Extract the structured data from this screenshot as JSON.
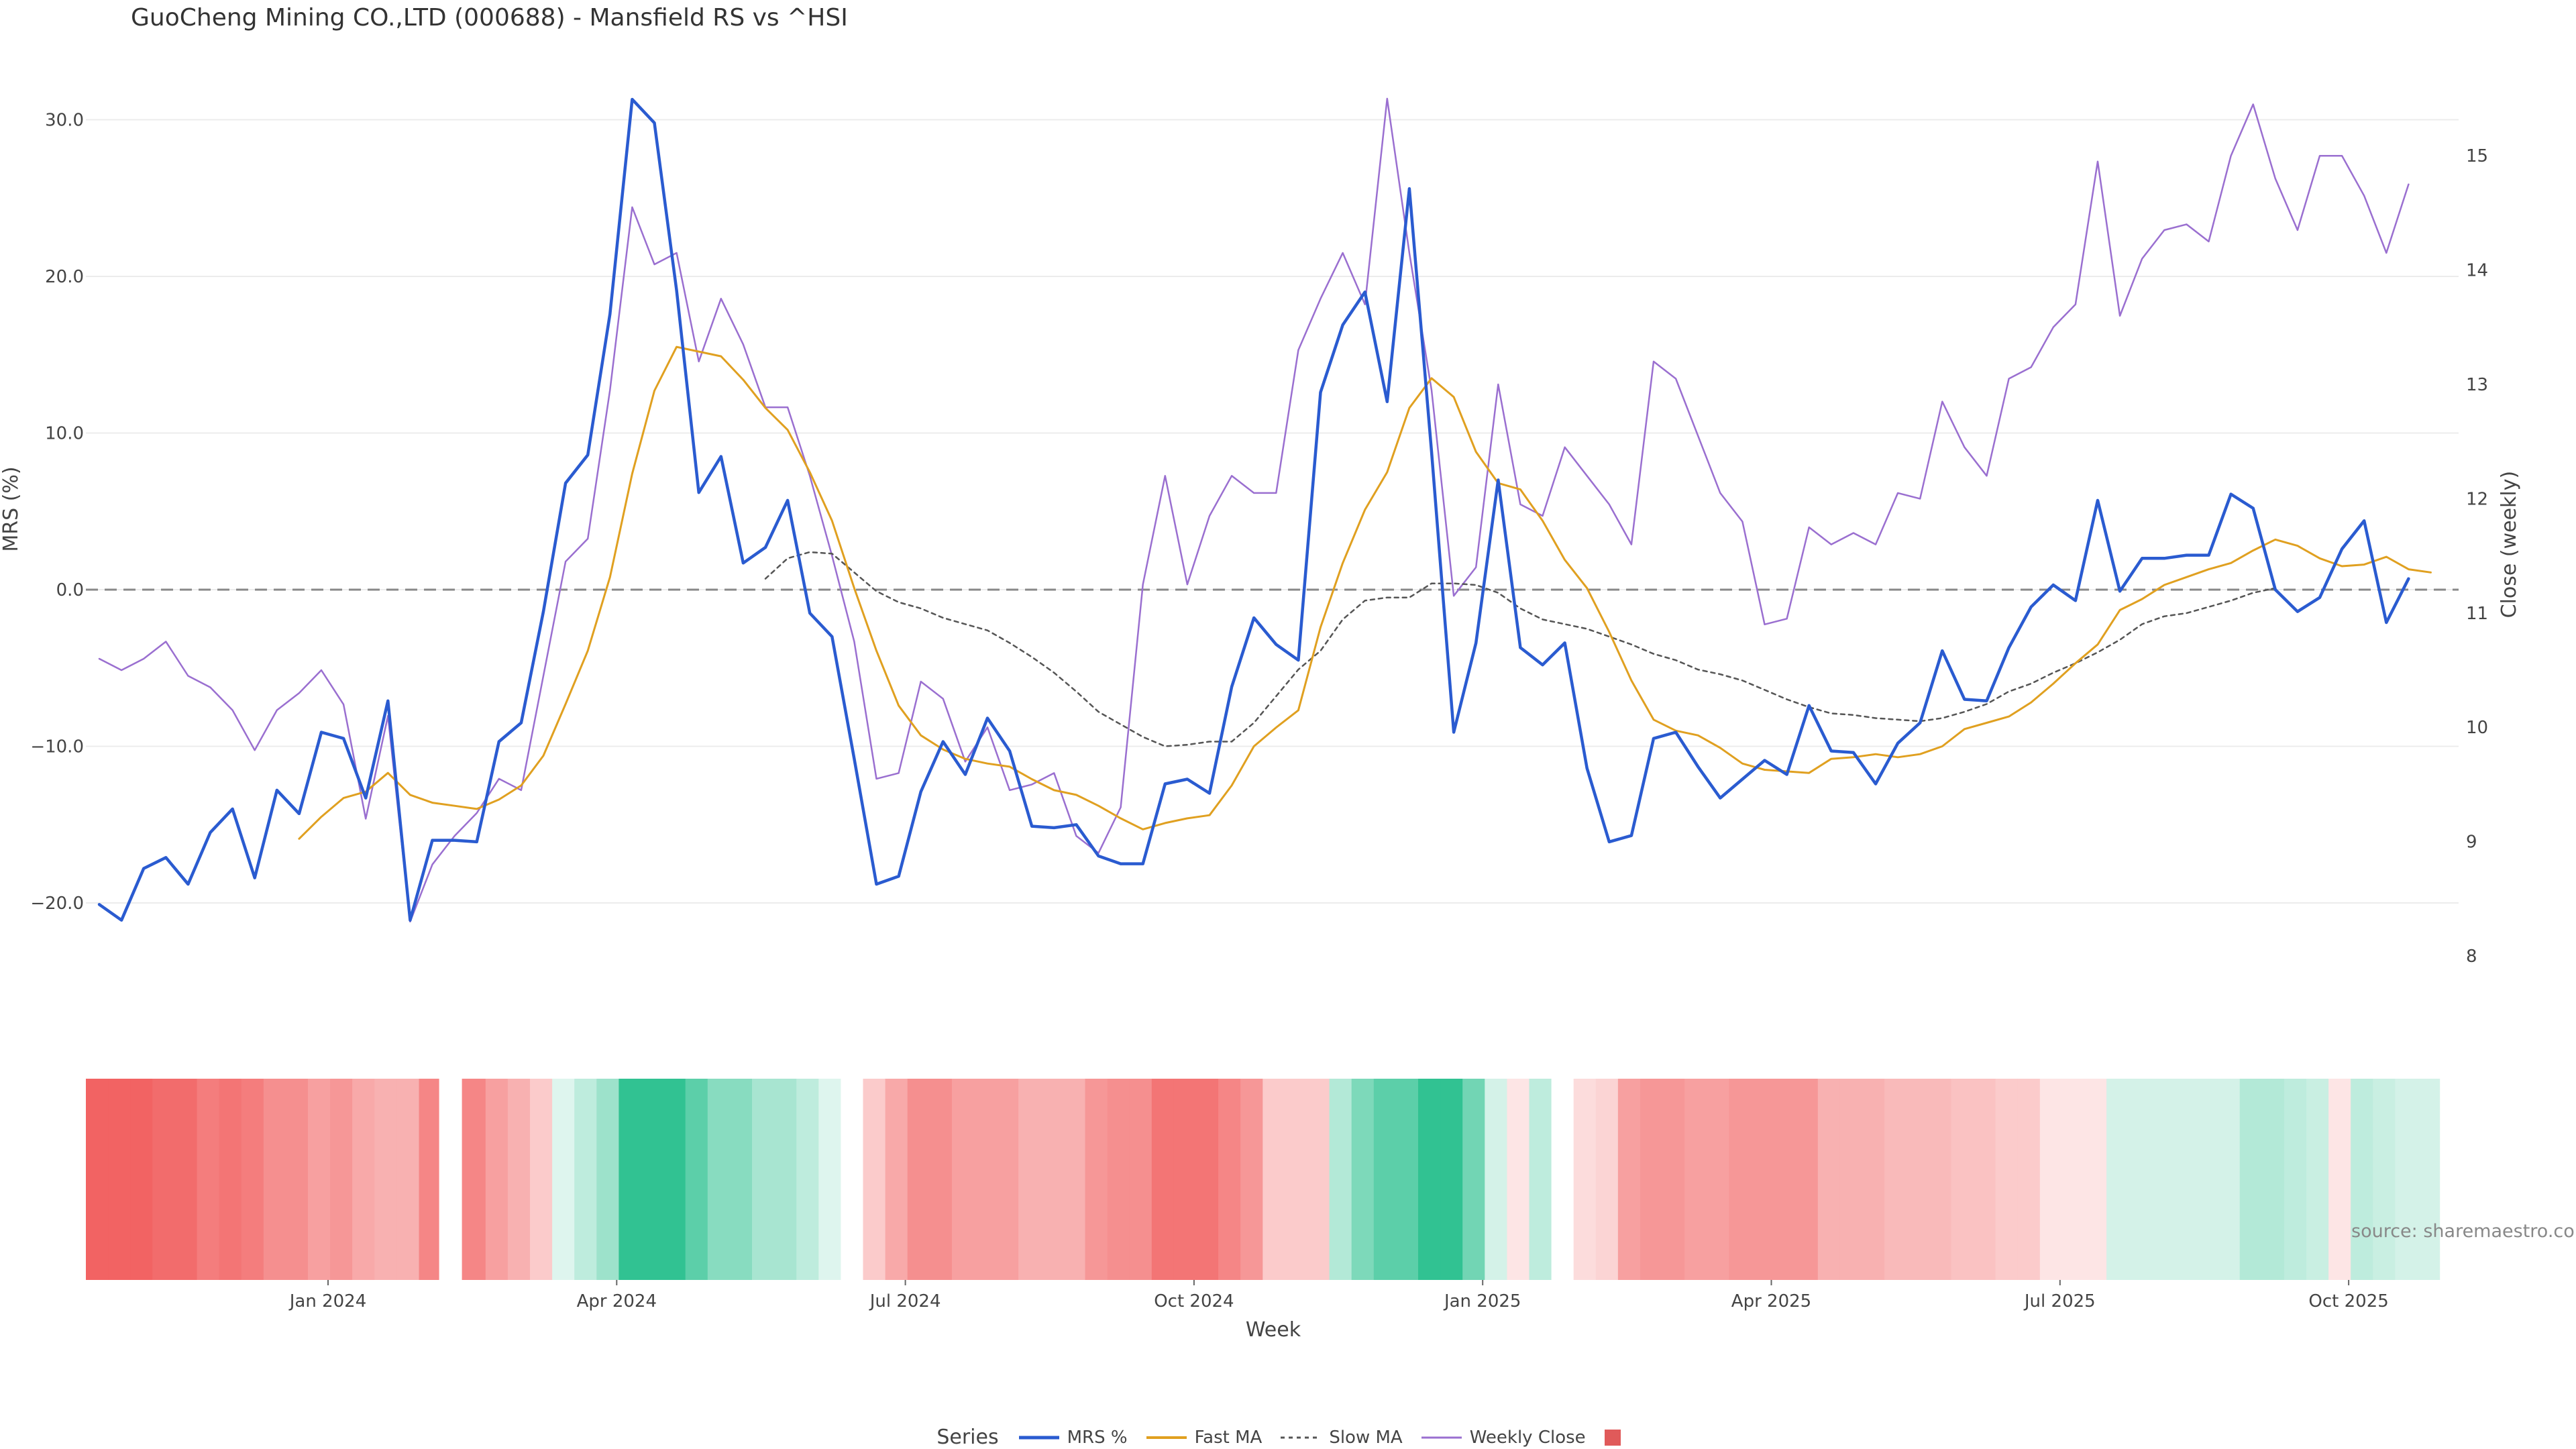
{
  "title": "GuoCheng Mining CO.,LTD (000688) - Mansfield RS vs ^HSI",
  "source": "source: sharemaestro.com",
  "legend": {
    "title": "Series",
    "items": [
      {
        "name": "MRS %",
        "color": "#2a5bd0",
        "dash": ""
      },
      {
        "name": "Fast MA",
        "color": "#e0a020",
        "dash": ""
      },
      {
        "name": "Slow MA",
        "color": "#555555",
        "dash": "6 6"
      },
      {
        "name": "Weekly Close",
        "color": "#9a6fd0",
        "dash": ""
      },
      {
        "name": "",
        "color": "#e05a5a",
        "swatch": true
      }
    ]
  },
  "chart_data": {
    "type": "line",
    "title": "GuoCheng Mining CO.,LTD (000688) - Mansfield RS vs ^HSI",
    "xlabel": "Week",
    "ylabel_left": "MRS (%)",
    "ylabel_right": "Close (weekly)",
    "ylim_left": [
      -24,
      30
    ],
    "yticks_left": [
      "30.0",
      "20.0",
      "10.0",
      "0.0",
      "−10.0",
      "−20.0"
    ],
    "yticks_left_values": [
      30,
      20,
      10,
      0,
      -10,
      -20
    ],
    "ylim_right": [
      8,
      15.2
    ],
    "yticks_right": [
      "15",
      "14",
      "13",
      "12",
      "11",
      "10",
      "9",
      "8"
    ],
    "yticks_right_values": [
      15,
      14,
      13,
      12,
      11,
      10,
      9,
      8
    ],
    "x_ticks": [
      {
        "label": "Jan 2024",
        "week": 10
      },
      {
        "label": "Apr 2024",
        "week": 23
      },
      {
        "label": "Jul 2024",
        "week": 36
      },
      {
        "label": "Oct 2024",
        "week": 49
      },
      {
        "label": "Jan 2025",
        "week": 62
      },
      {
        "label": "Apr 2025",
        "week": 75
      },
      {
        "label": "Jul 2025",
        "week": 88
      },
      {
        "label": "Oct 2025",
        "week": 101
      }
    ],
    "zero_line": 0,
    "series": [
      {
        "name": "MRS %",
        "axis": "left",
        "color": "#2a5bd0",
        "width": 4.5,
        "start": 0,
        "values": [
          -20.1,
          -21.1,
          -17.8,
          -17.1,
          -18.8,
          -15.5,
          -14,
          -18.4,
          -12.8,
          -14.3,
          -9.1,
          -9.5,
          -13.3,
          -7.1,
          -21.1,
          -16,
          -16,
          -16.1,
          -9.7,
          -8.5,
          -1.4,
          6.8,
          8.6,
          17.6,
          31.3,
          29.8,
          19.1,
          6.2,
          8.5,
          1.7,
          2.7,
          5.7,
          -1.5,
          -3,
          -10.8,
          -18.8,
          -18.3,
          -12.9,
          -9.7,
          -11.8,
          -8.2,
          -10.3,
          -15.1,
          -15.2,
          -15,
          -17,
          -17.5,
          -17.5,
          -12.4,
          -12.1,
          -13,
          -6.2,
          -1.8,
          -3.5,
          -4.5,
          12.6,
          16.9,
          19,
          12,
          25.6,
          8.8,
          -9.1,
          -3.4,
          7,
          -3.7,
          -4.8,
          -3.4,
          -11.4,
          -16.1,
          -15.7,
          -9.5,
          -9.1,
          -11.3,
          -13.3,
          -12.1,
          -10.9,
          -11.8,
          -7.4,
          -10.3,
          -10.4,
          -12.4,
          -9.8,
          -8.5,
          -3.9,
          -7,
          -7.1,
          -3.7,
          -1.1,
          0.3,
          -0.7,
          5.7,
          -0.1,
          2,
          2,
          2.2,
          2.2,
          6.1,
          5.2,
          0,
          -1.4,
          -0.5,
          2.6,
          4.4,
          -2.1,
          0.7
        ]
      },
      {
        "name": "Fast MA",
        "axis": "left",
        "color": "#e0a020",
        "width": 3,
        "start": 9,
        "values": [
          -15.9,
          -14.5,
          -13.3,
          -12.9,
          -11.7,
          -13.1,
          -13.6,
          -13.8,
          -14,
          -13.4,
          -12.5,
          -10.6,
          -7.3,
          -3.9,
          0.8,
          7.4,
          12.7,
          15.5,
          15.2,
          14.9,
          13.4,
          11.6,
          10.2,
          7.5,
          4.4,
          0.1,
          -3.9,
          -7.4,
          -9.3,
          -10.2,
          -10.8,
          -11.1,
          -11.3,
          -12.1,
          -12.8,
          -13.1,
          -13.8,
          -14.6,
          -15.3,
          -14.9,
          -14.6,
          -14.4,
          -12.5,
          -10,
          -8.8,
          -7.7,
          -2.4,
          1.7,
          5.1,
          7.5,
          11.6,
          13.5,
          12.3,
          8.8,
          6.8,
          6.4,
          4.4,
          1.9,
          0.1,
          -2.7,
          -5.8,
          -8.3,
          -9,
          -9.3,
          -10.1,
          -11.1,
          -11.5,
          -11.6,
          -11.7,
          -10.8,
          -10.7,
          -10.5,
          -10.7,
          -10.5,
          -10,
          -8.9,
          -8.5,
          -8.1,
          -7.2,
          -6,
          -4.7,
          -3.5,
          -1.3,
          -0.6,
          0.3,
          0.8,
          1.3,
          1.7,
          2.5,
          3.2,
          2.8,
          2,
          1.5,
          1.6,
          2.1,
          1.3,
          1.1
        ]
      },
      {
        "name": "Slow MA",
        "axis": "left",
        "color": "#555555",
        "width": 2.5,
        "dash": "6 6",
        "start": 30,
        "values": [
          0.7,
          2,
          2.4,
          2.3,
          1.1,
          -0.1,
          -0.8,
          -1.2,
          -1.8,
          -2.2,
          -2.6,
          -3.4,
          -4.3,
          -5.3,
          -6.5,
          -7.8,
          -8.6,
          -9.4,
          -10,
          -9.9,
          -9.7,
          -9.7,
          -8.5,
          -6.8,
          -5.1,
          -3.9,
          -1.9,
          -0.7,
          -0.5,
          -0.5,
          0.4,
          0.4,
          0.3,
          -0.2,
          -1.2,
          -1.9,
          -2.2,
          -2.5,
          -3,
          -3.5,
          -4.1,
          -4.5,
          -5.1,
          -5.4,
          -5.8,
          -6.4,
          -7,
          -7.5,
          -7.9,
          -8,
          -8.2,
          -8.3,
          -8.4,
          -8.2,
          -7.8,
          -7.3,
          -6.5,
          -6,
          -5.3,
          -4.7,
          -4,
          -3.2,
          -2.2,
          -1.7,
          -1.5,
          -1.1,
          -0.7,
          -0.2,
          0.1
        ]
      },
      {
        "name": "Weekly Close",
        "axis": "right",
        "color": "#9a6fd0",
        "width": 2.5,
        "start": 0,
        "values": [
          10.6,
          10.5,
          10.6,
          10.75,
          10.45,
          10.35,
          10.15,
          9.8,
          10.15,
          10.3,
          10.5,
          10.2,
          9.2,
          10.1,
          8.3,
          8.8,
          9.05,
          9.25,
          9.55,
          9.45,
          10.45,
          11.45,
          11.65,
          12.95,
          14.55,
          14.05,
          14.15,
          13.2,
          13.75,
          13.35,
          12.8,
          12.8,
          12.2,
          11.5,
          10.75,
          9.55,
          9.6,
          10.4,
          10.25,
          9.7,
          10,
          9.45,
          9.5,
          9.6,
          9.05,
          8.9,
          9.3,
          11.25,
          12.2,
          11.25,
          11.85,
          12.2,
          12.05,
          12.05,
          13.3,
          13.75,
          14.15,
          13.7,
          15.5,
          14.15,
          12.95,
          11.15,
          11.4,
          13,
          11.95,
          11.85,
          12.45,
          12.2,
          11.95,
          11.6,
          13.2,
          13.05,
          12.55,
          12.05,
          11.8,
          10.9,
          10.95,
          11.75,
          11.6,
          11.7,
          11.6,
          12.05,
          12,
          12.85,
          12.45,
          12.2,
          13.05,
          13.15,
          13.5,
          13.7,
          14.95,
          13.6,
          14.1,
          14.35,
          14.4,
          14.25,
          15,
          15.45,
          14.8,
          14.35,
          15,
          15,
          14.65,
          14.15,
          14.75
        ]
      }
    ],
    "heatmap": {
      "gap_after_week": 15,
      "cells": [
        -0.9,
        -0.9,
        -0.9,
        -0.85,
        -0.85,
        -0.75,
        -0.8,
        -0.75,
        -0.65,
        -0.65,
        -0.55,
        -0.6,
        -0.5,
        -0.45,
        -0.45,
        -0.7,
        -0.7,
        -0.7,
        -0.55,
        -0.45,
        -0.3,
        0.15,
        0.3,
        0.45,
        0.95,
        0.95,
        0.95,
        0.75,
        0.55,
        0.55,
        0.4,
        0.4,
        0.3,
        0.15,
        0,
        -0.3,
        -0.5,
        -0.65,
        -0.65,
        -0.55,
        -0.55,
        -0.55,
        -0.45,
        -0.45,
        -0.45,
        -0.6,
        -0.65,
        -0.65,
        -0.8,
        -0.8,
        -0.8,
        -0.7,
        -0.6,
        -0.3,
        -0.3,
        -0.3,
        0.35,
        0.6,
        0.75,
        0.75,
        0.95,
        0.95,
        0.65,
        0.2,
        -0.15,
        0.3,
        0,
        -0.2,
        -0.25,
        -0.55,
        -0.6,
        -0.6,
        -0.55,
        -0.55,
        -0.6,
        -0.6,
        -0.6,
        -0.6,
        -0.45,
        -0.45,
        -0.45,
        -0.4,
        -0.4,
        -0.4,
        -0.35,
        -0.35,
        -0.3,
        -0.3,
        -0.15,
        -0.15,
        -0.15,
        0.2,
        0.2,
        0.2,
        0.2,
        0.2,
        0.2,
        0.35,
        0.35,
        0.3,
        0.25,
        -0.15,
        0.3,
        0.25,
        0.2,
        0.2
      ]
    }
  }
}
